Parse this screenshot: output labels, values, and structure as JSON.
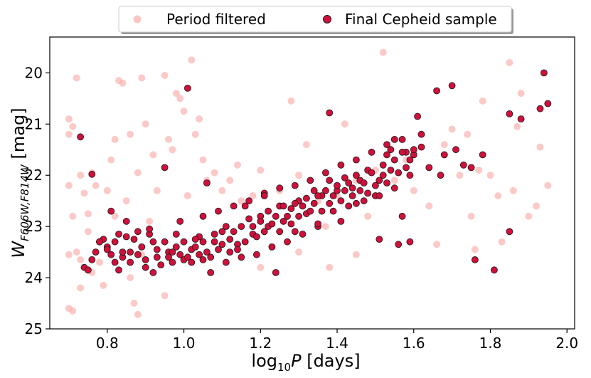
{
  "chart_data": {
    "type": "scatter",
    "title": "",
    "xlabel": {
      "main": "log",
      "sub": "10",
      "var": "P",
      "unit": " [days]"
    },
    "ylabel": {
      "main": "W",
      "sub": "F606W,F814W",
      "unit": " [mag]"
    },
    "xlim": [
      0.65,
      2.02
    ],
    "ylim": [
      25.0,
      19.3
    ],
    "y_inverted": true,
    "xticks": [
      0.8,
      1.0,
      1.2,
      1.4,
      1.6,
      1.8,
      2.0
    ],
    "xtick_labels": [
      "0.8",
      "1.0",
      "1.2",
      "1.4",
      "1.6",
      "1.8",
      "2.0"
    ],
    "yticks": [
      20,
      21,
      22,
      23,
      24,
      25
    ],
    "ytick_labels": [
      "20",
      "21",
      "22",
      "23",
      "24",
      "25"
    ],
    "grid": false,
    "legend_position": "top-center-outside",
    "colors": {
      "filtered": "#f9b4b0",
      "final": "#d0103a",
      "final_edge": "#1a1a1a"
    },
    "series": [
      {
        "name": "Period filtered",
        "points": [
          [
            0.7,
            20.9
          ],
          [
            0.71,
            21.05
          ],
          [
            0.7,
            21.2
          ],
          [
            0.72,
            20.1
          ],
          [
            0.7,
            22.2
          ],
          [
            0.71,
            22.8
          ],
          [
            0.7,
            23.55
          ],
          [
            0.72,
            23.5
          ],
          [
            0.73,
            23.65
          ],
          [
            0.7,
            24.6
          ],
          [
            0.71,
            24.65
          ],
          [
            0.73,
            24.2
          ],
          [
            0.73,
            22.0
          ],
          [
            0.74,
            22.35
          ],
          [
            0.75,
            22.75
          ],
          [
            0.75,
            23.1
          ],
          [
            0.76,
            21.95
          ],
          [
            0.76,
            23.9
          ],
          [
            0.77,
            22.2
          ],
          [
            0.78,
            23.7
          ],
          [
            0.79,
            24.15
          ],
          [
            0.8,
            22.3
          ],
          [
            0.81,
            21.7
          ],
          [
            0.82,
            21.3
          ],
          [
            0.82,
            22.8
          ],
          [
            0.83,
            20.15
          ],
          [
            0.84,
            20.2
          ],
          [
            0.85,
            22.5
          ],
          [
            0.86,
            21.2
          ],
          [
            0.86,
            24.0
          ],
          [
            0.87,
            24.5
          ],
          [
            0.88,
            24.72
          ],
          [
            0.88,
            21.95
          ],
          [
            0.89,
            20.1
          ],
          [
            0.89,
            23.55
          ],
          [
            0.9,
            21.0
          ],
          [
            0.91,
            22.9
          ],
          [
            0.92,
            21.6
          ],
          [
            0.93,
            22.3
          ],
          [
            0.95,
            20.05
          ],
          [
            0.96,
            21.3
          ],
          [
            0.97,
            21.5
          ],
          [
            0.98,
            20.4
          ],
          [
            0.99,
            20.5
          ],
          [
            1.0,
            20.75
          ],
          [
            1.01,
            22.4
          ],
          [
            1.02,
            19.75
          ],
          [
            1.03,
            21.2
          ],
          [
            1.04,
            20.9
          ],
          [
            1.05,
            21.7
          ],
          [
            1.06,
            22.1
          ],
          [
            1.08,
            21.95
          ],
          [
            1.1,
            22.3
          ],
          [
            1.12,
            22.1
          ],
          [
            1.14,
            21.8
          ],
          [
            1.15,
            22.5
          ],
          [
            1.18,
            22.4
          ],
          [
            1.2,
            21.9
          ],
          [
            1.22,
            22.7
          ],
          [
            1.25,
            22.3
          ],
          [
            1.28,
            20.55
          ],
          [
            1.3,
            22.0
          ],
          [
            1.32,
            21.4
          ],
          [
            1.35,
            22.5
          ],
          [
            1.37,
            23.0
          ],
          [
            1.4,
            22.4
          ],
          [
            1.42,
            21.0
          ],
          [
            1.45,
            22.1
          ],
          [
            1.48,
            22.8
          ],
          [
            1.5,
            21.9
          ],
          [
            1.52,
            19.6
          ],
          [
            1.55,
            22.1
          ],
          [
            1.58,
            21.7
          ],
          [
            1.6,
            22.3
          ],
          [
            1.62,
            21.2
          ],
          [
            1.64,
            22.6
          ],
          [
            1.66,
            23.35
          ],
          [
            1.68,
            21.4
          ],
          [
            1.7,
            21.1
          ],
          [
            1.72,
            22.0
          ],
          [
            1.74,
            21.2
          ],
          [
            1.75,
            22.8
          ],
          [
            1.76,
            23.45
          ],
          [
            1.77,
            21.9
          ],
          [
            1.78,
            20.55
          ],
          [
            1.8,
            22.0
          ],
          [
            1.82,
            22.4
          ],
          [
            1.83,
            23.3
          ],
          [
            1.85,
            19.8
          ],
          [
            1.86,
            22.3
          ],
          [
            1.87,
            21.05
          ],
          [
            1.88,
            20.4
          ],
          [
            1.9,
            22.8
          ],
          [
            1.92,
            22.6
          ],
          [
            1.93,
            21.45
          ],
          [
            1.95,
            22.2
          ],
          [
            0.95,
            24.35
          ],
          [
            1.2,
            23.8
          ],
          [
            1.3,
            23.5
          ],
          [
            1.38,
            23.8
          ],
          [
            1.45,
            23.55
          ]
        ]
      },
      {
        "name": "Final Cepheid sample",
        "points": [
          [
            0.73,
            21.25
          ],
          [
            0.74,
            23.8
          ],
          [
            0.75,
            23.85
          ],
          [
            0.76,
            21.98
          ],
          [
            0.77,
            23.5
          ],
          [
            0.78,
            23.3
          ],
          [
            0.79,
            23.25
          ],
          [
            0.8,
            23.4
          ],
          [
            0.81,
            22.7
          ],
          [
            0.82,
            23.3
          ],
          [
            0.83,
            23.85
          ],
          [
            0.84,
            23.6
          ],
          [
            0.85,
            23.2
          ],
          [
            0.86,
            23.5
          ],
          [
            0.88,
            23.1
          ],
          [
            0.9,
            23.65
          ],
          [
            0.92,
            23.3
          ],
          [
            0.93,
            23.6
          ],
          [
            0.95,
            21.85
          ],
          [
            0.96,
            23.5
          ],
          [
            0.98,
            23.4
          ],
          [
            1.0,
            23.65
          ],
          [
            1.01,
            20.3
          ],
          [
            1.02,
            23.45
          ],
          [
            1.04,
            23.2
          ],
          [
            1.05,
            23.65
          ],
          [
            1.06,
            22.15
          ],
          [
            1.08,
            23.3
          ],
          [
            1.1,
            23.1
          ],
          [
            1.12,
            23.5
          ],
          [
            1.14,
            23.35
          ],
          [
            1.16,
            22.6
          ],
          [
            1.18,
            23.15
          ],
          [
            1.2,
            22.8
          ],
          [
            1.21,
            22.35
          ],
          [
            1.22,
            23.0
          ],
          [
            1.24,
            23.9
          ],
          [
            1.25,
            22.6
          ],
          [
            1.26,
            22.9
          ],
          [
            1.28,
            22.65
          ],
          [
            1.29,
            23.1
          ],
          [
            1.3,
            22.5
          ],
          [
            1.32,
            22.75
          ],
          [
            1.34,
            22.3
          ],
          [
            1.35,
            23.0
          ],
          [
            1.36,
            22.4
          ],
          [
            1.38,
            22.1
          ],
          [
            1.38,
            20.78
          ],
          [
            1.4,
            22.3
          ],
          [
            1.41,
            22.9
          ],
          [
            1.42,
            22.05
          ],
          [
            1.44,
            22.25
          ],
          [
            1.45,
            22.55
          ],
          [
            1.46,
            22.1
          ],
          [
            1.48,
            21.9
          ],
          [
            1.5,
            22.4
          ],
          [
            1.51,
            23.25
          ],
          [
            1.52,
            22.0
          ],
          [
            1.53,
            21.6
          ],
          [
            1.54,
            21.5
          ],
          [
            1.55,
            21.3
          ],
          [
            1.56,
            23.35
          ],
          [
            1.57,
            22.8
          ],
          [
            1.58,
            21.55
          ],
          [
            1.59,
            23.3
          ],
          [
            1.6,
            21.6
          ],
          [
            1.61,
            20.85
          ],
          [
            1.62,
            21.45
          ],
          [
            1.64,
            21.85
          ],
          [
            1.66,
            20.35
          ],
          [
            1.67,
            22.0
          ],
          [
            1.68,
            21.6
          ],
          [
            1.7,
            20.25
          ],
          [
            1.71,
            21.5
          ],
          [
            1.73,
            21.8
          ],
          [
            1.75,
            21.85
          ],
          [
            1.76,
            23.65
          ],
          [
            1.78,
            21.6
          ],
          [
            1.81,
            23.85
          ],
          [
            1.85,
            20.8
          ],
          [
            1.85,
            23.1
          ],
          [
            1.88,
            20.9
          ],
          [
            1.93,
            20.7
          ],
          [
            1.94,
            20.0
          ],
          [
            1.95,
            20.6
          ],
          [
            0.78,
            23.3
          ],
          [
            0.8,
            23.45
          ],
          [
            0.81,
            23.55
          ],
          [
            0.83,
            23.15
          ],
          [
            0.84,
            23.5
          ],
          [
            0.86,
            23.7
          ],
          [
            0.87,
            23.25
          ],
          [
            0.89,
            23.4
          ],
          [
            0.9,
            23.8
          ],
          [
            0.91,
            23.15
          ],
          [
            0.93,
            23.45
          ],
          [
            0.94,
            23.75
          ],
          [
            0.95,
            23.3
          ],
          [
            0.96,
            23.6
          ],
          [
            0.97,
            23.7
          ],
          [
            0.98,
            23.15
          ],
          [
            0.99,
            23.55
          ],
          [
            1.0,
            23.3
          ],
          [
            1.01,
            23.6
          ],
          [
            1.02,
            23.7
          ],
          [
            1.03,
            23.4
          ],
          [
            1.04,
            23.55
          ],
          [
            1.05,
            23.3
          ],
          [
            1.06,
            23.5
          ],
          [
            1.07,
            23.6
          ],
          [
            1.08,
            23.15
          ],
          [
            1.09,
            23.45
          ],
          [
            1.1,
            23.35
          ],
          [
            1.11,
            23.0
          ],
          [
            1.12,
            23.25
          ],
          [
            1.13,
            23.1
          ],
          [
            1.14,
            23.45
          ],
          [
            1.15,
            23.0
          ],
          [
            1.16,
            23.3
          ],
          [
            1.17,
            22.85
          ],
          [
            1.18,
            23.0
          ],
          [
            1.19,
            23.2
          ],
          [
            1.2,
            22.9
          ],
          [
            1.21,
            23.1
          ],
          [
            1.22,
            22.7
          ],
          [
            1.23,
            22.95
          ],
          [
            1.24,
            22.8
          ],
          [
            1.25,
            23.1
          ],
          [
            1.26,
            22.6
          ],
          [
            1.27,
            22.8
          ],
          [
            1.28,
            22.95
          ],
          [
            1.29,
            22.55
          ],
          [
            1.3,
            22.8
          ],
          [
            1.31,
            22.6
          ],
          [
            1.32,
            22.45
          ],
          [
            1.33,
            22.7
          ],
          [
            1.34,
            22.55
          ],
          [
            1.35,
            22.4
          ],
          [
            1.36,
            22.7
          ],
          [
            1.37,
            22.3
          ],
          [
            1.38,
            22.55
          ],
          [
            1.39,
            22.4
          ],
          [
            1.4,
            22.2
          ],
          [
            1.41,
            22.5
          ],
          [
            1.42,
            22.3
          ],
          [
            1.43,
            22.15
          ],
          [
            1.44,
            22.4
          ],
          [
            1.45,
            22.0
          ],
          [
            1.46,
            22.3
          ],
          [
            1.47,
            22.15
          ],
          [
            1.48,
            22.35
          ],
          [
            1.49,
            21.95
          ],
          [
            1.5,
            22.2
          ],
          [
            1.51,
            22.1
          ],
          [
            1.52,
            21.8
          ],
          [
            1.53,
            22.15
          ],
          [
            1.54,
            21.9
          ],
          [
            1.55,
            21.7
          ],
          [
            1.56,
            21.95
          ],
          [
            1.57,
            21.55
          ],
          [
            1.58,
            21.85
          ],
          [
            1.59,
            21.7
          ],
          [
            1.6,
            21.5
          ],
          [
            0.76,
            23.65
          ],
          [
            0.82,
            23.7
          ],
          [
            0.88,
            23.55
          ],
          [
            0.92,
            23.9
          ],
          [
            0.97,
            23.5
          ],
          [
            1.03,
            23.25
          ],
          [
            1.07,
            23.9
          ],
          [
            1.11,
            23.7
          ],
          [
            1.15,
            23.6
          ],
          [
            1.19,
            23.55
          ],
          [
            1.23,
            23.4
          ],
          [
            1.27,
            23.3
          ],
          [
            1.31,
            23.15
          ],
          [
            1.35,
            22.95
          ],
          [
            1.39,
            22.7
          ],
          [
            1.43,
            22.6
          ],
          [
            1.47,
            22.5
          ],
          [
            1.51,
            22.4
          ],
          [
            1.55,
            22.25
          ],
          [
            1.59,
            22.0
          ],
          [
            0.85,
            22.9
          ],
          [
            0.91,
            23.05
          ],
          [
            0.99,
            22.9
          ],
          [
            1.05,
            22.8
          ],
          [
            1.09,
            22.7
          ],
          [
            1.13,
            22.6
          ],
          [
            1.17,
            22.5
          ],
          [
            1.21,
            22.4
          ],
          [
            1.25,
            22.25
          ],
          [
            1.29,
            22.2
          ],
          [
            1.33,
            22.1
          ],
          [
            1.37,
            21.95
          ],
          [
            1.41,
            21.8
          ],
          [
            1.45,
            21.7
          ],
          [
            1.49,
            21.55
          ],
          [
            1.53,
            21.4
          ],
          [
            1.57,
            21.3
          ],
          [
            1.62,
            21.2
          ]
        ]
      }
    ]
  }
}
